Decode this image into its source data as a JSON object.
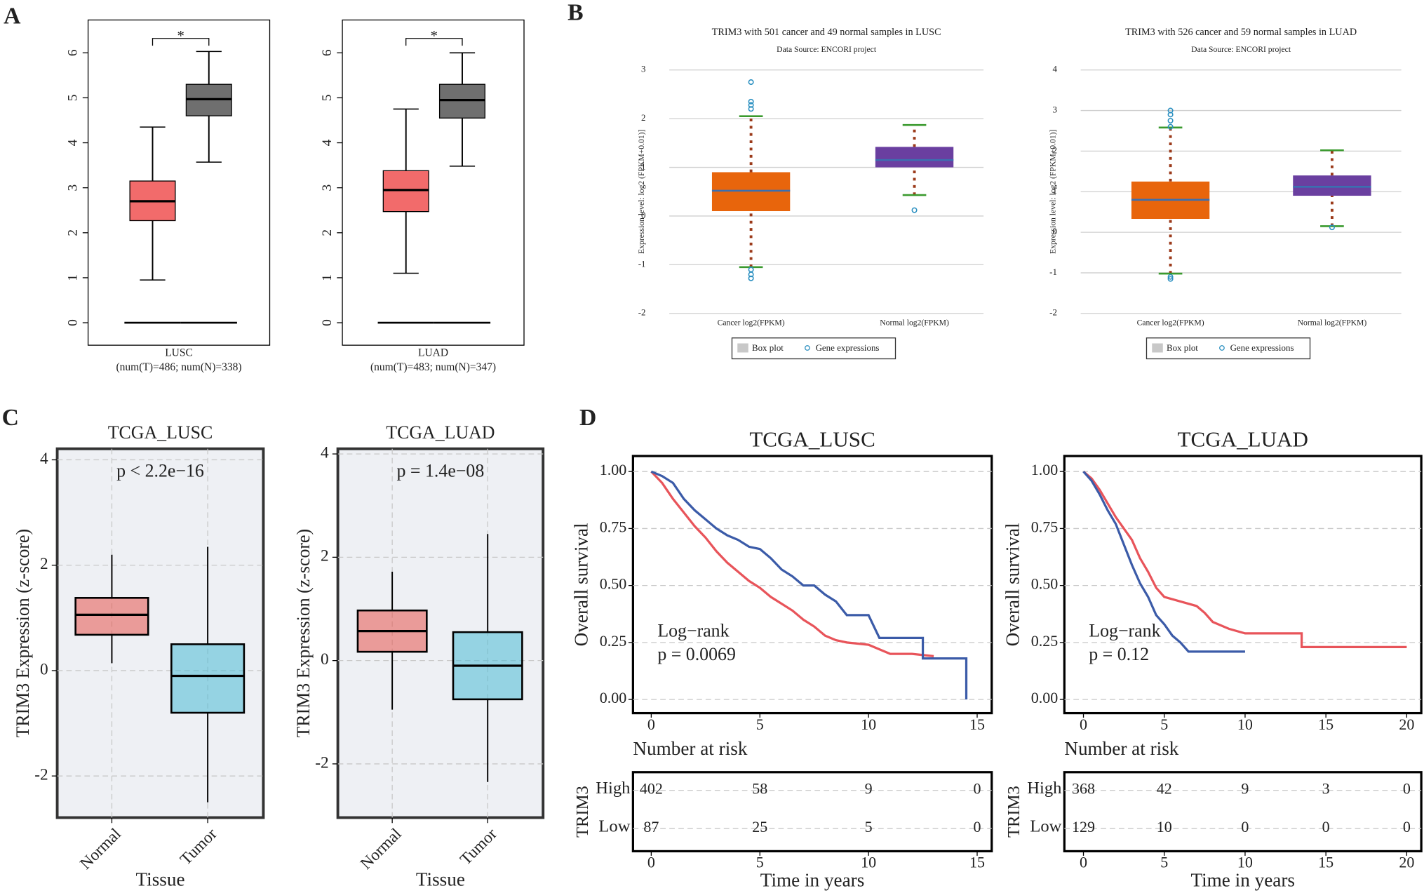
{
  "panel_labels": [
    "A",
    "B",
    "C",
    "D"
  ],
  "chart_data": [
    {
      "type": "box",
      "xlabel": "LUSC",
      "subtitle": "(num(T)=486; num(N)=338)",
      "ylim": [
        -0.5,
        6.73
      ],
      "yticks": [
        0,
        1,
        2,
        3,
        4,
        5,
        6
      ],
      "significance": {
        "label": "*",
        "y": 6.32
      },
      "boxes": [
        {
          "color": "#f26b6b",
          "whislo": 0.95,
          "q1": 2.27,
          "med": 2.7,
          "q3": 3.15,
          "whishi": 4.35,
          "floor": 0
        },
        {
          "color": "#6f6f6f",
          "whislo": 3.57,
          "q1": 4.6,
          "med": 4.97,
          "q3": 5.3,
          "whishi": 6.03,
          "floor": 0
        }
      ]
    },
    {
      "type": "box",
      "xlabel": "LUAD",
      "subtitle": "(num(T)=483; num(N)=347)",
      "ylim": [
        -0.5,
        6.73
      ],
      "yticks": [
        0,
        1,
        2,
        3,
        4,
        5,
        6
      ],
      "significance": {
        "label": "*",
        "y": 6.32
      },
      "boxes": [
        {
          "color": "#f26b6b",
          "whislo": 1.1,
          "q1": 2.47,
          "med": 2.95,
          "q3": 3.38,
          "whishi": 4.75,
          "floor": 0
        },
        {
          "color": "#6f6f6f",
          "whislo": 3.48,
          "q1": 4.55,
          "med": 4.95,
          "q3": 5.3,
          "whishi": 6.0,
          "floor": 0
        }
      ]
    },
    {
      "type": "box",
      "title": "TRIM3 with 501 cancer and 49 normal samples in LUSC",
      "subtitle": "Data Source: ENCORI project",
      "ylabel": "Expression level: log2 (FPKM+0.01)]",
      "categories": [
        "Cancer log2(FPKM)",
        "Normal log2(FPKM)"
      ],
      "ylim": [
        -2,
        3
      ],
      "yticks": [
        -2,
        -1,
        0,
        1,
        2,
        3
      ],
      "grid": true,
      "legend": [
        "Box plot",
        "Gene expressions"
      ],
      "boxes": [
        {
          "color": "#e8650c",
          "whislo": -1.05,
          "q1": 0.1,
          "med": 0.52,
          "q3": 0.9,
          "whishi": 2.05,
          "outliers": [
            2.75,
            2.35,
            2.28,
            2.2,
            -1.1,
            -1.2,
            -1.28
          ]
        },
        {
          "color": "#6a3fa0",
          "whislo": 0.43,
          "q1": 1.0,
          "med": 1.15,
          "q3": 1.42,
          "whishi": 1.87,
          "outliers": [
            0.12
          ]
        }
      ]
    },
    {
      "type": "box",
      "title": "TRIM3 with 526 cancer and 59 normal samples in LUAD",
      "subtitle": "Data Source: ENCORI project",
      "ylabel": "Expression level: log2 (FPKM+0.01)]",
      "categories": [
        "Cancer log2(FPKM)",
        "Normal log2(FPKM)"
      ],
      "ylim": [
        -2,
        4
      ],
      "yticks": [
        -2,
        -1,
        0,
        1,
        2,
        3,
        4
      ],
      "grid": true,
      "legend": [
        "Box plot",
        "Gene expressions"
      ],
      "boxes": [
        {
          "color": "#e8650c",
          "whislo": -1.02,
          "q1": 0.33,
          "med": 0.8,
          "q3": 1.25,
          "whishi": 2.58,
          "outliers": [
            3.0,
            2.9,
            2.75,
            2.6,
            -1.1,
            -1.15
          ]
        },
        {
          "color": "#6a3fa0",
          "whislo": 0.15,
          "q1": 0.9,
          "med": 1.12,
          "q3": 1.4,
          "whishi": 2.02,
          "outliers": [
            0.12
          ]
        }
      ]
    },
    {
      "type": "box",
      "title": "TCGA_LUSC",
      "annotation": "p < 2.2e−16",
      "ylabel": "TRIM3 Expression (z-score)",
      "xlabel": "Tissue",
      "categories": [
        "Normal",
        "Tumor"
      ],
      "ylim": [
        -2.79,
        4.21
      ],
      "yticks": [
        -2,
        0,
        2,
        4
      ],
      "grid": true,
      "boxes": [
        {
          "color": "#e8554e",
          "whislo": 0.14,
          "q1": 0.68,
          "med": 1.06,
          "q3": 1.38,
          "whishi": 2.2
        },
        {
          "color": "#4dbbd5",
          "whislo": -2.5,
          "q1": -0.8,
          "med": -0.1,
          "q3": 0.5,
          "whishi": 2.35
        }
      ]
    },
    {
      "type": "box",
      "title": "TCGA_LUAD",
      "annotation": "p = 1.4e−08",
      "ylabel": "TRIM3 Expression (z-score)",
      "xlabel": "Tissue",
      "categories": [
        "Normal",
        "Tumor"
      ],
      "ylim": [
        -3.04,
        4.1
      ],
      "yticks": [
        -2,
        0,
        2,
        4
      ],
      "grid": true,
      "boxes": [
        {
          "color": "#e8554e",
          "whislo": -0.95,
          "q1": 0.17,
          "med": 0.57,
          "q3": 0.97,
          "whishi": 1.72
        },
        {
          "color": "#4dbbd5",
          "whislo": -2.35,
          "q1": -0.75,
          "med": -0.1,
          "q3": 0.55,
          "whishi": 2.45
        }
      ]
    },
    {
      "type": "survival",
      "title": "TCGA_LUSC",
      "ylabel": "Overall survival",
      "xlabel": "Time in years",
      "annotation": [
        "Log−rank",
        "p = 0.0069"
      ],
      "xlim": [
        -0.84,
        15.67
      ],
      "xticks": [
        0,
        5,
        10,
        15
      ],
      "ylim": [
        -0.06,
        1.068
      ],
      "yticks": [
        {
          "value": 0,
          "label": "0.00"
        },
        {
          "value": 0.25,
          "label": "0.25"
        },
        {
          "value": 0.5,
          "label": "0.50"
        },
        {
          "value": 0.75,
          "label": "0.75"
        },
        {
          "value": 1,
          "label": "1.00"
        }
      ],
      "grid": true,
      "series": [
        {
          "name": "High",
          "color": "#e8545a",
          "x": [
            0,
            0.5,
            1,
            1.5,
            2,
            2.5,
            3,
            3.5,
            4,
            4.5,
            5,
            5.5,
            6,
            6.5,
            7,
            7.5,
            8,
            8.5,
            9,
            10,
            10.5,
            11,
            12,
            13
          ],
          "values": [
            1,
            0.95,
            0.88,
            0.82,
            0.76,
            0.71,
            0.65,
            0.6,
            0.56,
            0.52,
            0.49,
            0.45,
            0.42,
            0.39,
            0.35,
            0.32,
            0.28,
            0.26,
            0.25,
            0.24,
            0.22,
            0.2,
            0.2,
            0.19
          ]
        },
        {
          "name": "Low",
          "color": "#3b5ba8",
          "x": [
            0,
            0.5,
            1,
            1.5,
            2,
            2.5,
            3,
            3.5,
            4,
            4.5,
            5,
            5.5,
            6,
            6.5,
            7,
            7.5,
            8,
            8.5,
            9,
            10,
            10.5,
            12.5,
            12.5,
            14.5,
            14.5
          ],
          "values": [
            1,
            0.98,
            0.95,
            0.88,
            0.83,
            0.79,
            0.75,
            0.72,
            0.7,
            0.67,
            0.66,
            0.62,
            0.57,
            0.54,
            0.5,
            0.5,
            0.46,
            0.43,
            0.37,
            0.37,
            0.27,
            0.27,
            0.18,
            0.18,
            0
          ]
        }
      ],
      "risk_table": {
        "title": "Number at risk",
        "strata": "TRIM3",
        "rows": [
          [
            402,
            58,
            9,
            0
          ],
          [
            87,
            25,
            5,
            0
          ]
        ]
      }
    },
    {
      "type": "survival",
      "title": "TCGA_LUAD",
      "ylabel": "Overall survival",
      "xlabel": "Time in years",
      "annotation": [
        "Log−rank",
        "p = 0.12"
      ],
      "xlim": [
        -1.18,
        20.9
      ],
      "xticks": [
        0,
        5,
        10,
        15,
        20
      ],
      "ylim": [
        -0.06,
        1.068
      ],
      "yticks": [
        {
          "value": 0,
          "label": "0.00"
        },
        {
          "value": 0.25,
          "label": "0.25"
        },
        {
          "value": 0.5,
          "label": "0.50"
        },
        {
          "value": 0.75,
          "label": "0.75"
        },
        {
          "value": 1,
          "label": "1.00"
        }
      ],
      "grid": true,
      "series": [
        {
          "name": "High",
          "color": "#e8545a",
          "x": [
            0,
            0.5,
            1,
            1.5,
            2,
            2.5,
            3,
            3.5,
            4,
            4.5,
            5,
            6,
            7,
            7.5,
            8,
            9,
            10,
            13.5,
            13.5,
            20
          ],
          "values": [
            1,
            0.97,
            0.92,
            0.86,
            0.8,
            0.75,
            0.7,
            0.62,
            0.56,
            0.49,
            0.45,
            0.43,
            0.41,
            0.38,
            0.34,
            0.31,
            0.29,
            0.29,
            0.23,
            0.23
          ]
        },
        {
          "name": "Low",
          "color": "#3b5ba8",
          "x": [
            0,
            0.5,
            1,
            1.5,
            2,
            2.5,
            3,
            3.5,
            4,
            4.5,
            5,
            5.5,
            6,
            6.5,
            10
          ],
          "values": [
            1,
            0.96,
            0.9,
            0.83,
            0.77,
            0.68,
            0.59,
            0.51,
            0.45,
            0.37,
            0.33,
            0.28,
            0.25,
            0.21,
            0.21
          ]
        }
      ],
      "risk_table": {
        "title": "Number at risk",
        "strata": "TRIM3",
        "rows": [
          [
            368,
            42,
            9,
            3,
            0
          ],
          [
            129,
            10,
            0,
            0,
            0
          ]
        ]
      }
    }
  ]
}
